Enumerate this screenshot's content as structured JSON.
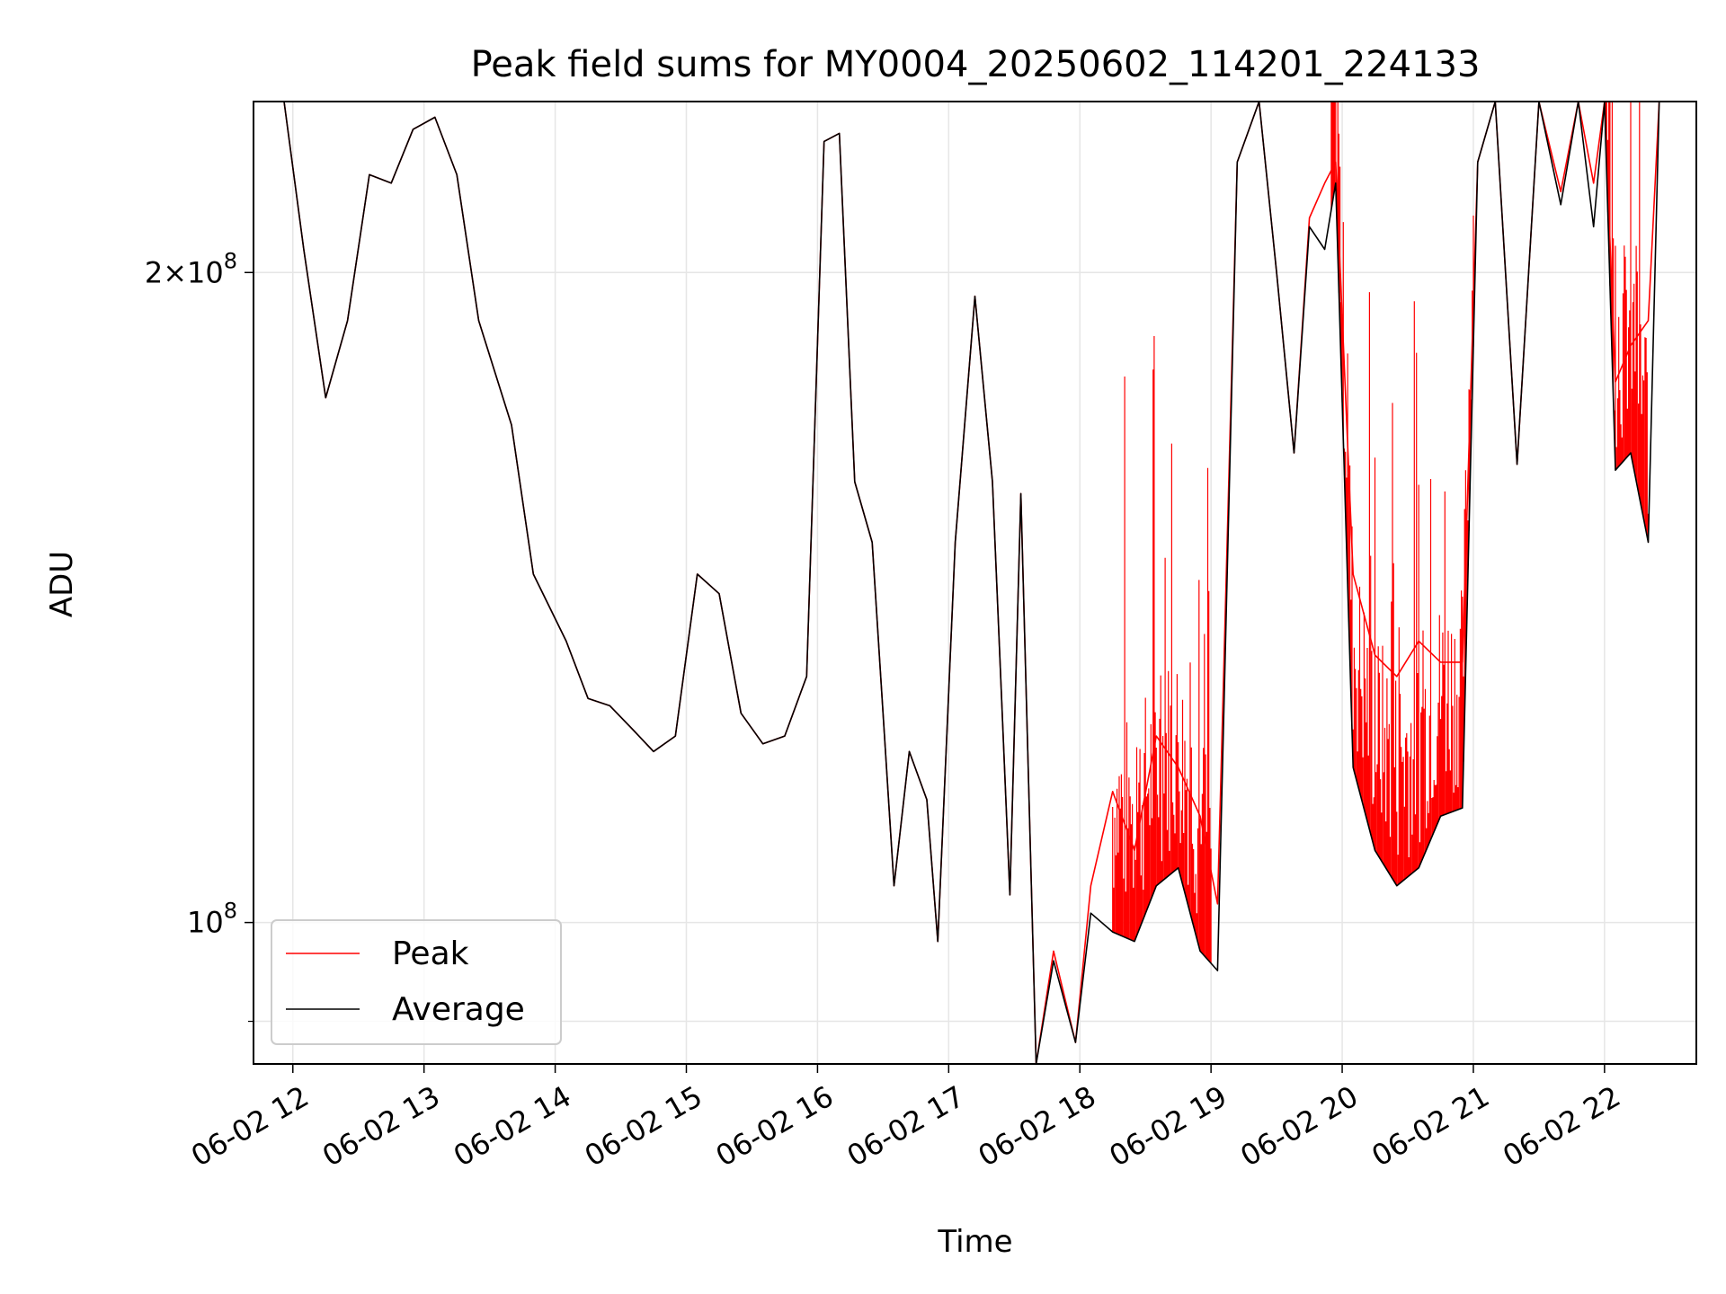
{
  "chart_data": {
    "type": "line",
    "title": "Peak field sums for MY0004_20250602_114201_224133",
    "xlabel": "Time",
    "ylabel": "ADU",
    "y_scale": "log",
    "grid": true,
    "legend_position": "lower-left",
    "x_range": [
      "2025-06-02 11:42",
      "2025-06-02 22:42"
    ],
    "y_range": [
      86000000,
      240000000
    ],
    "x_ticks": [
      {
        "at": "2025-06-02 12:00",
        "label": "06-02 12"
      },
      {
        "at": "2025-06-02 13:00",
        "label": "06-02 13"
      },
      {
        "at": "2025-06-02 14:00",
        "label": "06-02 14"
      },
      {
        "at": "2025-06-02 15:00",
        "label": "06-02 15"
      },
      {
        "at": "2025-06-02 16:00",
        "label": "06-02 16"
      },
      {
        "at": "2025-06-02 17:00",
        "label": "06-02 17"
      },
      {
        "at": "2025-06-02 18:00",
        "label": "06-02 18"
      },
      {
        "at": "2025-06-02 19:00",
        "label": "06-02 19"
      },
      {
        "at": "2025-06-02 20:00",
        "label": "06-02 20"
      },
      {
        "at": "2025-06-02 21:00",
        "label": "06-02 21"
      },
      {
        "at": "2025-06-02 22:00",
        "label": "06-02 22"
      }
    ],
    "y_ticks_major": [
      {
        "value": 100000000,
        "base": "10",
        "exp": "8",
        "coef": ""
      },
      {
        "value": 200000000,
        "base": "10",
        "exp": "8",
        "coef": "2"
      }
    ],
    "y_ticks_minor": [
      90000000,
      300000000
    ],
    "series": [
      {
        "name": "Peak",
        "color": "#ff0000",
        "stroke_width": 1,
        "x": [
          "2025-06-02 11:42",
          "2025-06-02 11:56",
          "2025-06-02 12:05",
          "2025-06-02 12:15",
          "2025-06-02 12:25",
          "2025-06-02 12:35",
          "2025-06-02 12:45",
          "2025-06-02 12:55",
          "2025-06-02 13:05",
          "2025-06-02 13:15",
          "2025-06-02 13:25",
          "2025-06-02 13:40",
          "2025-06-02 13:50",
          "2025-06-02 14:05",
          "2025-06-02 14:15",
          "2025-06-02 14:25",
          "2025-06-02 14:35",
          "2025-06-02 14:45",
          "2025-06-02 14:55",
          "2025-06-02 15:05",
          "2025-06-02 15:15",
          "2025-06-02 15:25",
          "2025-06-02 15:35",
          "2025-06-02 15:45",
          "2025-06-02 15:55",
          "2025-06-02 16:03",
          "2025-06-02 16:10",
          "2025-06-02 16:17",
          "2025-06-02 16:25",
          "2025-06-02 16:35",
          "2025-06-02 16:42",
          "2025-06-02 16:50",
          "2025-06-02 16:55",
          "2025-06-02 17:03",
          "2025-06-02 17:12",
          "2025-06-02 17:20",
          "2025-06-02 17:28",
          "2025-06-02 17:33",
          "2025-06-02 17:40",
          "2025-06-02 17:48",
          "2025-06-02 17:58",
          "2025-06-02 18:05",
          "2025-06-02 18:15",
          "2025-06-02 18:25",
          "2025-06-02 18:35",
          "2025-06-02 18:45",
          "2025-06-02 18:55",
          "2025-06-02 19:03",
          "2025-06-02 19:12",
          "2025-06-02 19:22",
          "2025-06-02 19:30",
          "2025-06-02 19:38",
          "2025-06-02 19:45",
          "2025-06-02 19:52",
          "2025-06-02 19:57",
          "2025-06-02 20:05",
          "2025-06-02 20:15",
          "2025-06-02 20:25",
          "2025-06-02 20:35",
          "2025-06-02 20:45",
          "2025-06-02 20:55",
          "2025-06-02 21:02",
          "2025-06-02 21:10",
          "2025-06-02 21:20",
          "2025-06-02 21:30",
          "2025-06-02 21:40",
          "2025-06-02 21:48",
          "2025-06-02 21:55",
          "2025-06-02 22:00",
          "2025-06-02 22:05",
          "2025-06-02 22:12",
          "2025-06-02 22:20",
          "2025-06-02 22:25",
          "2025-06-02 22:42"
        ],
        "y": [
          240000000,
          240000000,
          205000000,
          175000000,
          190000000,
          222000000,
          220000000,
          233000000,
          236000000,
          222000000,
          190000000,
          170000000,
          145000000,
          135000000,
          127000000,
          126000000,
          123000000,
          120000000,
          122000000,
          145000000,
          142000000,
          125000000,
          121000000,
          122000000,
          130000000,
          230000000,
          232000000,
          160000000,
          150000000,
          104000000,
          120000000,
          114000000,
          98000000,
          150000000,
          195000000,
          160000000,
          103000000,
          158000000,
          86000000,
          97000000,
          88000000,
          104000000,
          115000000,
          108000000,
          122000000,
          118000000,
          112000000,
          102000000,
          225000000,
          240000000,
          200000000,
          165000000,
          212000000,
          220000000,
          225000000,
          145000000,
          133000000,
          130000000,
          135000000,
          132000000,
          132000000,
          225000000,
          240000000,
          163000000,
          240000000,
          218000000,
          240000000,
          220000000,
          240000000,
          178000000,
          185000000,
          190000000,
          240000000,
          240000000
        ]
      },
      {
        "name": "Average",
        "color": "#000000",
        "stroke_width": 1,
        "x": [
          "2025-06-02 11:42",
          "2025-06-02 11:56",
          "2025-06-02 12:05",
          "2025-06-02 12:15",
          "2025-06-02 12:25",
          "2025-06-02 12:35",
          "2025-06-02 12:45",
          "2025-06-02 12:55",
          "2025-06-02 13:05",
          "2025-06-02 13:15",
          "2025-06-02 13:25",
          "2025-06-02 13:40",
          "2025-06-02 13:50",
          "2025-06-02 14:05",
          "2025-06-02 14:15",
          "2025-06-02 14:25",
          "2025-06-02 14:35",
          "2025-06-02 14:45",
          "2025-06-02 14:55",
          "2025-06-02 15:05",
          "2025-06-02 15:15",
          "2025-06-02 15:25",
          "2025-06-02 15:35",
          "2025-06-02 15:45",
          "2025-06-02 15:55",
          "2025-06-02 16:03",
          "2025-06-02 16:10",
          "2025-06-02 16:17",
          "2025-06-02 16:25",
          "2025-06-02 16:35",
          "2025-06-02 16:42",
          "2025-06-02 16:50",
          "2025-06-02 16:55",
          "2025-06-02 17:03",
          "2025-06-02 17:12",
          "2025-06-02 17:20",
          "2025-06-02 17:28",
          "2025-06-02 17:33",
          "2025-06-02 17:40",
          "2025-06-02 17:48",
          "2025-06-02 17:58",
          "2025-06-02 18:05",
          "2025-06-02 18:15",
          "2025-06-02 18:25",
          "2025-06-02 18:35",
          "2025-06-02 18:45",
          "2025-06-02 18:55",
          "2025-06-02 19:03",
          "2025-06-02 19:12",
          "2025-06-02 19:22",
          "2025-06-02 19:30",
          "2025-06-02 19:38",
          "2025-06-02 19:45",
          "2025-06-02 19:52",
          "2025-06-02 19:57",
          "2025-06-02 20:05",
          "2025-06-02 20:15",
          "2025-06-02 20:25",
          "2025-06-02 20:35",
          "2025-06-02 20:45",
          "2025-06-02 20:55",
          "2025-06-02 21:02",
          "2025-06-02 21:10",
          "2025-06-02 21:20",
          "2025-06-02 21:30",
          "2025-06-02 21:40",
          "2025-06-02 21:48",
          "2025-06-02 21:55",
          "2025-06-02 22:00",
          "2025-06-02 22:05",
          "2025-06-02 22:12",
          "2025-06-02 22:20",
          "2025-06-02 22:25",
          "2025-06-02 22:42"
        ],
        "y": [
          240000000,
          240000000,
          205000000,
          175000000,
          190000000,
          222000000,
          220000000,
          233000000,
          236000000,
          222000000,
          190000000,
          170000000,
          145000000,
          135000000,
          127000000,
          126000000,
          123000000,
          120000000,
          122000000,
          145000000,
          142000000,
          125000000,
          121000000,
          122000000,
          130000000,
          230000000,
          232000000,
          160000000,
          150000000,
          104000000,
          120000000,
          114000000,
          98000000,
          150000000,
          195000000,
          160000000,
          103000000,
          158000000,
          86000000,
          96000000,
          88000000,
          101000000,
          99000000,
          98000000,
          104000000,
          106000000,
          97000000,
          95000000,
          225000000,
          240000000,
          200000000,
          165000000,
          210000000,
          205000000,
          220000000,
          118000000,
          108000000,
          104000000,
          106000000,
          112000000,
          113000000,
          225000000,
          240000000,
          163000000,
          240000000,
          215000000,
          240000000,
          210000000,
          240000000,
          162000000,
          165000000,
          150000000,
          240000000,
          240000000
        ]
      }
    ],
    "annotations": [
      {
        "series": "Peak",
        "type": "noise-spikes",
        "x_from": "2025-06-02 18:15",
        "x_to": "2025-06-02 19:00"
      },
      {
        "series": "Peak",
        "type": "noise-spikes",
        "x_from": "2025-06-02 19:55",
        "x_to": "2025-06-02 21:00"
      },
      {
        "series": "Peak",
        "type": "noise-spikes",
        "x_from": "2025-06-02 22:00",
        "x_to": "2025-06-02 22:20"
      }
    ]
  }
}
